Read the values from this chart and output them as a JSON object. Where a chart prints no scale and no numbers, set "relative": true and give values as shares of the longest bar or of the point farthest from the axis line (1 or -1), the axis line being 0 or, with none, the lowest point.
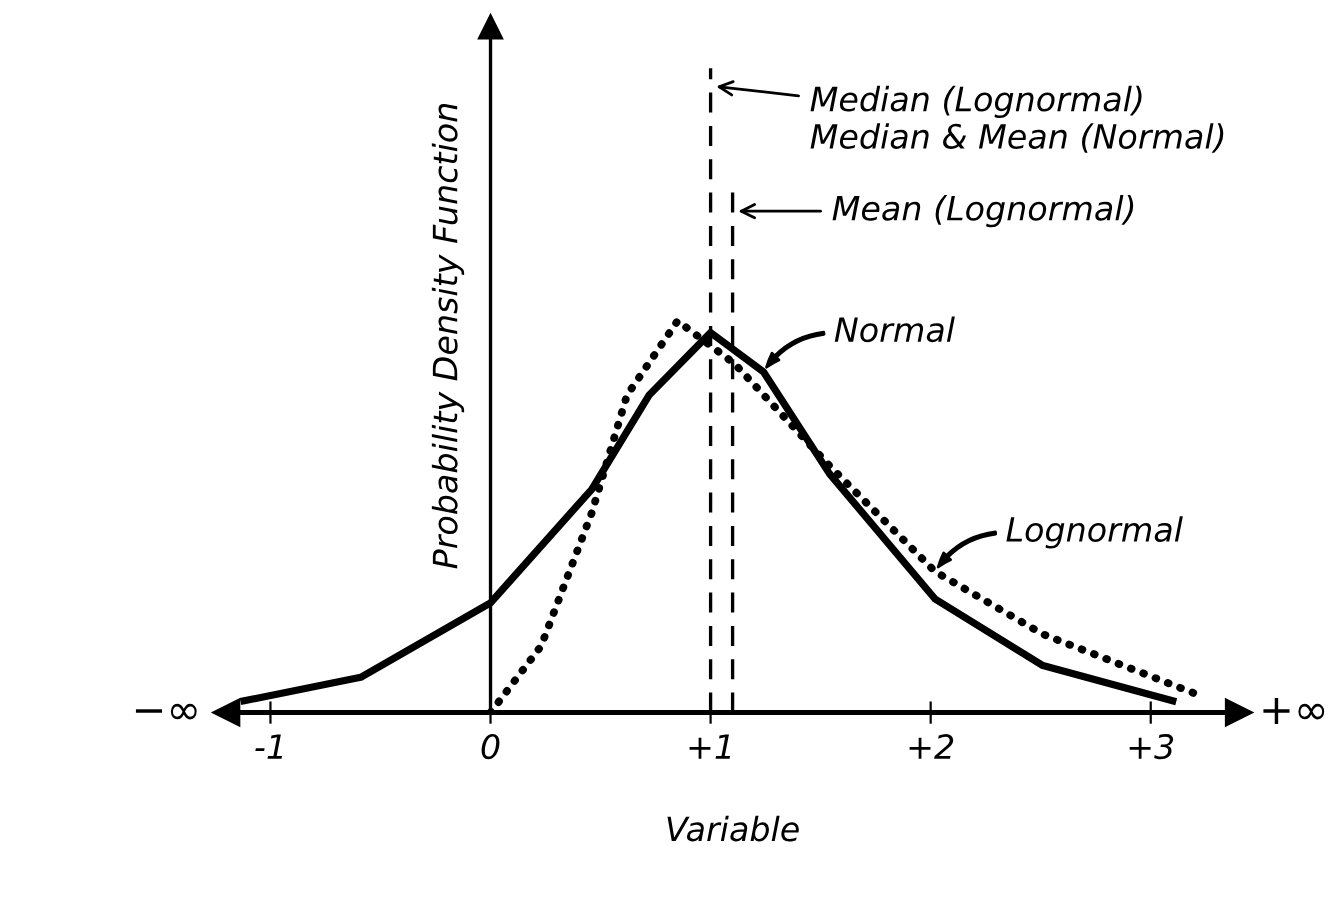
{
  "chart_data": {
    "type": "line",
    "relative": true,
    "xlabel": "Variable",
    "ylabel": "Probability Density Function",
    "xlim": [
      -1.2,
      3.4
    ],
    "xticks": [
      {
        "value": -1,
        "label": "-1"
      },
      0,
      {
        "value": 1,
        "label": "+1"
      },
      {
        "value": 2,
        "label": "+2"
      },
      {
        "value": 3,
        "label": "+3"
      }
    ],
    "series": [
      {
        "color": "#000000",
        "line_style": "solid",
        "x": [
          -1.12,
          -0.59,
          0,
          0.46,
          0.72,
          1.0,
          1.24,
          1.54,
          2.02,
          2.51,
          3.1
        ],
        "values": [
          0.03,
          0.09,
          0.28,
          0.57,
          0.81,
          0.97,
          0.87,
          0.61,
          0.29,
          0.12,
          0.03
        ]
      },
      {
        "color": "#000000",
        "line_style": "dotted",
        "x": [
          0,
          0.23,
          0.46,
          0.62,
          0.85,
          1.11,
          1.54,
          2.02,
          2.51,
          3.24
        ],
        "values": [
          0,
          0.17,
          0.51,
          0.81,
          1.0,
          0.89,
          0.63,
          0.36,
          0.2,
          0.04
        ]
      }
    ],
    "ref_lines": [
      {
        "axis": "x",
        "value": 1.0,
        "label": "Median (Lognormal)\nMedian & Mean (Normal)",
        "line_style": "dashed",
        "color": "#000000"
      },
      {
        "axis": "x",
        "value": 1.1,
        "label": "Mean (Lognormal)",
        "line_style": "dashed",
        "color": "#000000"
      }
    ],
    "annotations": [
      "−∞",
      "+∞",
      {
        "text": "Normal",
        "x": 1.24,
        "y": 0.87
      },
      {
        "text": "Lognormal",
        "x": 2.02,
        "y": 0.36
      }
    ],
    "grid": false
  }
}
